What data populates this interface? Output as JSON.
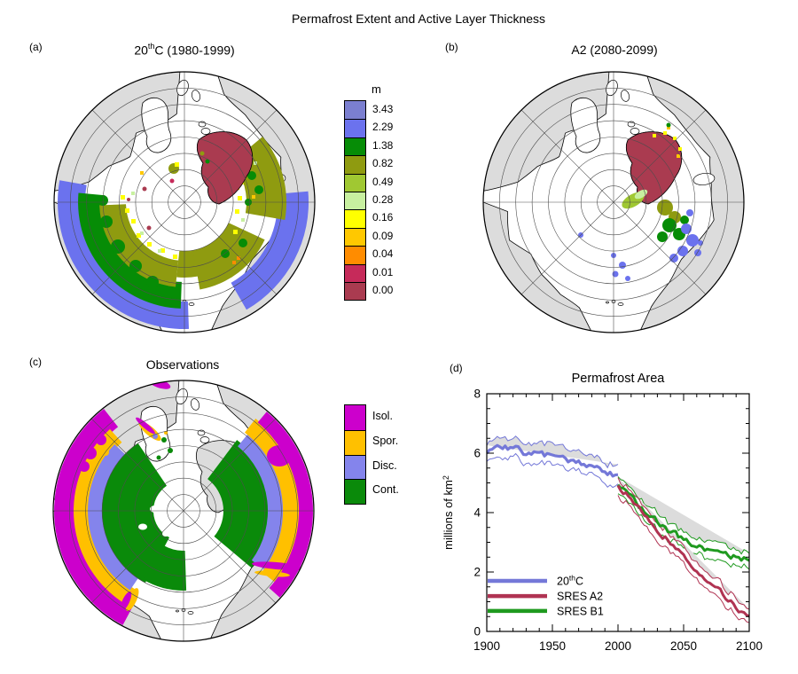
{
  "figure_title": "Permafrost Extent and Active Layer Thickness",
  "panels": {
    "a": {
      "label": "(a)",
      "title_pre": "20",
      "title_sup": "th",
      "title_post": "C (1980-1999)"
    },
    "b": {
      "label": "(b)",
      "title": "A2 (2080-2099)"
    },
    "c": {
      "label": "(c)",
      "title": "Observations"
    },
    "d": {
      "label": "(d)"
    }
  },
  "colorbar": {
    "unit": "m",
    "entries": [
      {
        "value": "3.43",
        "color": "#7b7fd0"
      },
      {
        "value": "2.29",
        "color": "#6b72ee"
      },
      {
        "value": "1.38",
        "color": "#068c06"
      },
      {
        "value": "0.82",
        "color": "#8f9b10"
      },
      {
        "value": "0.49",
        "color": "#a0c832"
      },
      {
        "value": "0.28",
        "color": "#c8f0a0"
      },
      {
        "value": "0.16",
        "color": "#ffff00"
      },
      {
        "value": "0.09",
        "color": "#ffc800"
      },
      {
        "value": "0.04",
        "color": "#ff8c00"
      },
      {
        "value": "0.01",
        "color": "#c62a5a"
      },
      {
        "value": "0.00",
        "color": "#aa3b50"
      }
    ]
  },
  "obs_legend": {
    "entries": [
      {
        "label": "Isol.",
        "color": "#cc00cc"
      },
      {
        "label": "Spor.",
        "color": "#ffc000"
      },
      {
        "label": "Disc.",
        "color": "#8484ec"
      },
      {
        "label": "Cont.",
        "color": "#0a8a0a"
      }
    ]
  },
  "map_colors": {
    "land": "#dcdcdc",
    "ocean": "#ffffff",
    "coastline": "#000000",
    "graticule": "#4d4d4d"
  },
  "chart_data": {
    "type": "line",
    "title": "Permafrost Area",
    "xlabel": "",
    "ylabel_pre": "millions of km",
    "ylabel_sup": "2",
    "xlim": [
      1900,
      2100
    ],
    "ylim": [
      0,
      8
    ],
    "x_ticks": [
      1900,
      1950,
      2000,
      2050,
      2100
    ],
    "y_ticks": [
      0,
      2,
      4,
      6,
      8
    ],
    "x_minor_step": 10,
    "y_minor_step": 0.5,
    "grid": false,
    "legend_position": "lower-left",
    "band_fill": "#dcdcdc",
    "series": [
      {
        "name": "20thC",
        "legend_pre": "20",
        "legend_sup": "th",
        "legend_post": "C",
        "color": "#7478d8",
        "x_start": 1900,
        "x_step": 10,
        "band_halfwidth": 0.33,
        "values": [
          6.1,
          6.2,
          6.15,
          6.0,
          5.95,
          5.9,
          5.85,
          5.7,
          5.55,
          5.4,
          5.2
        ]
      },
      {
        "name": "SRES A2",
        "legend_pre": "SRES A2",
        "legend_sup": "",
        "legend_post": "",
        "color": "#b03352",
        "x_start": 2000,
        "x_step": 10,
        "band_halfwidth": 0.28,
        "values": [
          4.9,
          4.5,
          3.95,
          3.4,
          3.0,
          2.5,
          2.1,
          1.65,
          1.25,
          0.8,
          0.45
        ]
      },
      {
        "name": "SRES B1",
        "legend_pre": "SRES B1",
        "legend_sup": "",
        "legend_post": "",
        "color": "#1f9a1f",
        "x_start": 2000,
        "x_step": 10,
        "band_halfwidth": 0.28,
        "values": [
          4.95,
          4.5,
          4.05,
          3.7,
          3.35,
          3.1,
          2.9,
          2.75,
          2.6,
          2.5,
          2.4
        ]
      }
    ]
  }
}
